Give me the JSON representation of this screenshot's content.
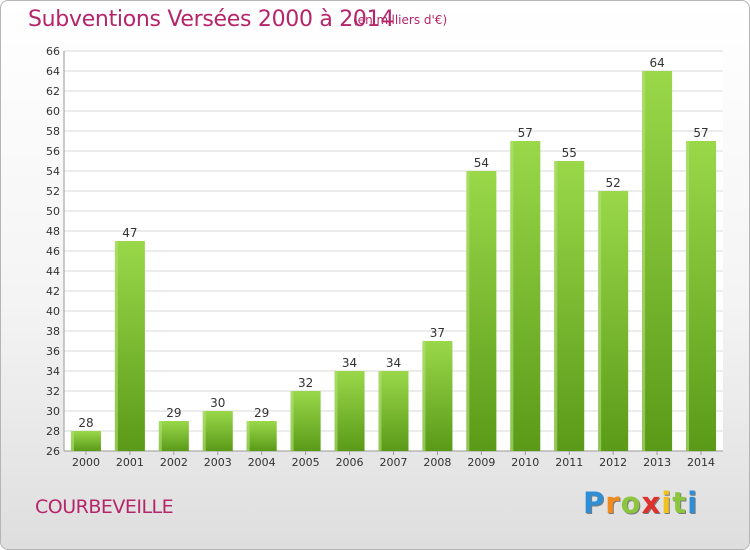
{
  "title": "Subventions Versées 2000 à 2014",
  "subtitle": "(en milliers d'€)",
  "commune": "COURBEVEILLE",
  "logo": {
    "text": "Proxiti",
    "letters": [
      "P",
      "r",
      "o",
      "x",
      "i",
      "t",
      "i"
    ],
    "colors": [
      "#2e8fd6",
      "#f28a1c",
      "#8cc63f",
      "#e0302a",
      "#f2c21c",
      "#8cc63f",
      "#2e8fd6"
    ]
  },
  "colors": {
    "bar": "#7cc230",
    "bar_light": "#9ad84a",
    "bar_dark": "#5a9a18",
    "title": "#b5256a",
    "grid": "#d9d9d9"
  },
  "chart_data": {
    "type": "bar",
    "categories": [
      "2000",
      "2001",
      "2002",
      "2003",
      "2004",
      "2005",
      "2006",
      "2007",
      "2008",
      "2009",
      "2010",
      "2011",
      "2012",
      "2013",
      "2014"
    ],
    "values": [
      28,
      47,
      29,
      30,
      29,
      32,
      34,
      34,
      37,
      54,
      57,
      55,
      52,
      64,
      57
    ],
    "ylim": [
      26,
      66
    ],
    "yticks": [
      26,
      28,
      30,
      32,
      34,
      36,
      38,
      40,
      42,
      44,
      46,
      48,
      50,
      52,
      54,
      56,
      58,
      60,
      62,
      64,
      66
    ],
    "grid": true
  }
}
